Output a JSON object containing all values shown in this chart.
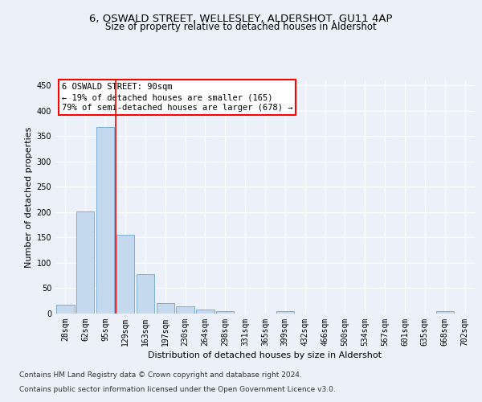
{
  "title1": "6, OSWALD STREET, WELLESLEY, ALDERSHOT, GU11 4AP",
  "title2": "Size of property relative to detached houses in Aldershot",
  "xlabel": "Distribution of detached houses by size in Aldershot",
  "ylabel": "Number of detached properties",
  "bar_color": "#c5d9ee",
  "bar_edge_color": "#7aafd4",
  "categories": [
    "28sqm",
    "62sqm",
    "95sqm",
    "129sqm",
    "163sqm",
    "197sqm",
    "230sqm",
    "264sqm",
    "298sqm",
    "331sqm",
    "365sqm",
    "399sqm",
    "432sqm",
    "466sqm",
    "500sqm",
    "534sqm",
    "567sqm",
    "601sqm",
    "635sqm",
    "668sqm",
    "702sqm"
  ],
  "values": [
    18,
    202,
    368,
    155,
    78,
    21,
    15,
    8,
    5,
    0,
    0,
    5,
    0,
    0,
    0,
    0,
    0,
    0,
    0,
    5,
    0
  ],
  "ylim": [
    0,
    460
  ],
  "yticks": [
    0,
    50,
    100,
    150,
    200,
    250,
    300,
    350,
    400,
    450
  ],
  "red_line_index": 2,
  "annotation_text": "6 OSWALD STREET: 90sqm\n← 19% of detached houses are smaller (165)\n79% of semi-detached houses are larger (678) →",
  "footnote1": "Contains HM Land Registry data © Crown copyright and database right 2024.",
  "footnote2": "Contains public sector information licensed under the Open Government Licence v3.0.",
  "background_color": "#ecf1f9",
  "grid_color": "#ffffff",
  "title1_fontsize": 9.5,
  "title2_fontsize": 8.5,
  "axis_label_fontsize": 8,
  "tick_fontsize": 7,
  "annotation_fontsize": 7.5,
  "footnote_fontsize": 6.5
}
